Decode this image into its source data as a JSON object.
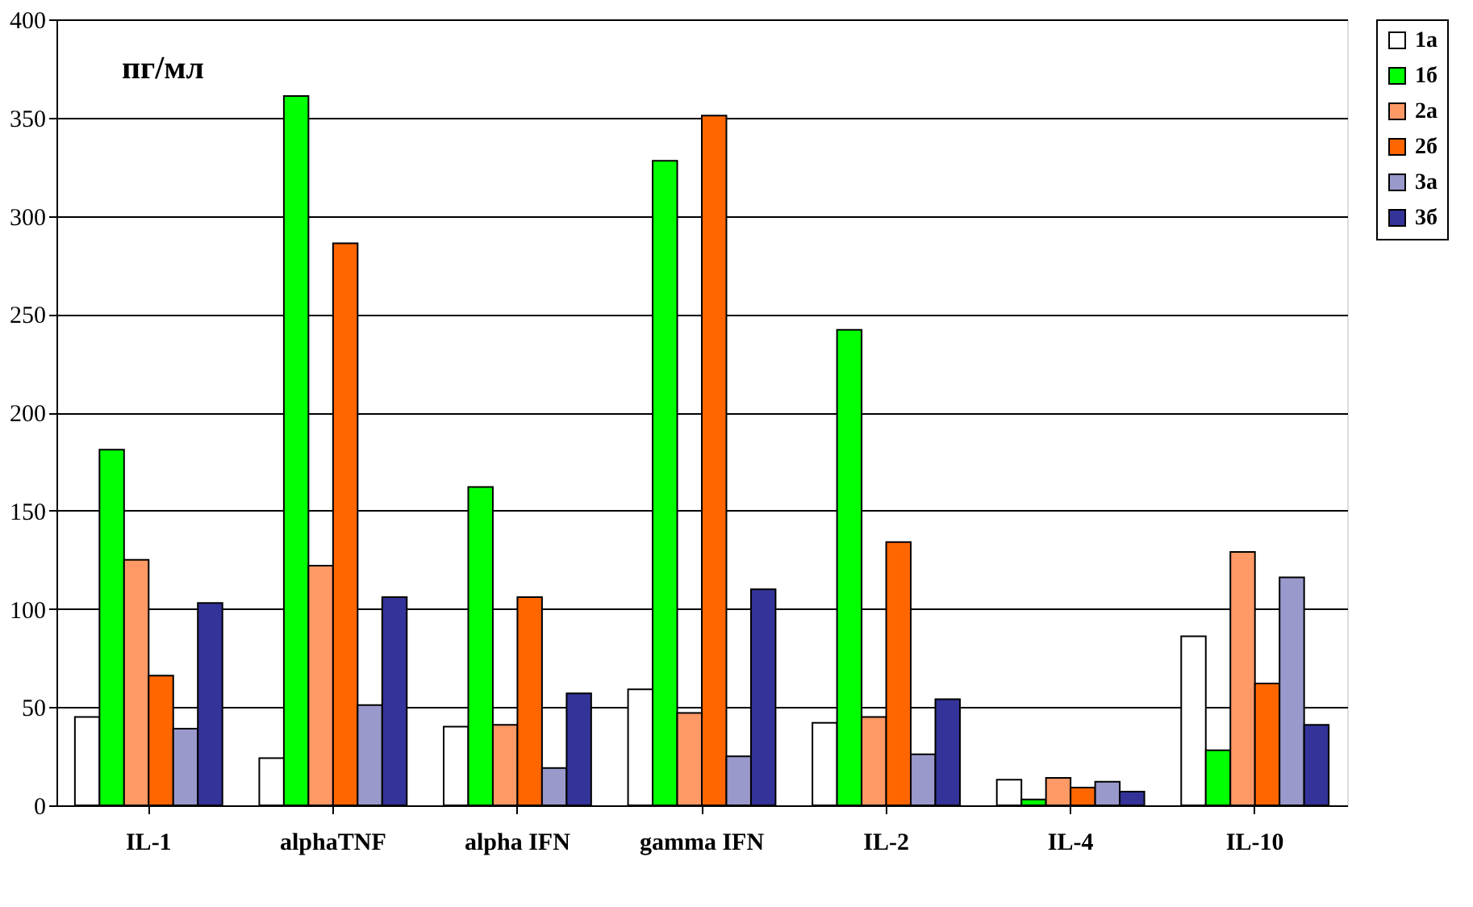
{
  "chart_data": {
    "type": "bar",
    "ylabel": "пг/мл",
    "categories": [
      "IL-1",
      "alphaTNF",
      "alpha IFN",
      "gamma IFN",
      "IL-2",
      "IL-4",
      "IL-10"
    ],
    "series": [
      {
        "name": "1а",
        "color": "#ffffff",
        "values": [
          45,
          24,
          40,
          59,
          42,
          13,
          86
        ]
      },
      {
        "name": "1б",
        "color": "#00ff00",
        "values": [
          181,
          361,
          162,
          328,
          242,
          3,
          28
        ]
      },
      {
        "name": "2а",
        "color": "#ff9966",
        "values": [
          125,
          122,
          41,
          47,
          45,
          14,
          129
        ]
      },
      {
        "name": "2б",
        "color": "#ff6600",
        "values": [
          66,
          286,
          106,
          351,
          134,
          9,
          62
        ]
      },
      {
        "name": "3а",
        "color": "#9999cc",
        "values": [
          39,
          51,
          19,
          25,
          26,
          12,
          116
        ]
      },
      {
        "name": "3б",
        "color": "#333399",
        "values": [
          103,
          106,
          57,
          110,
          54,
          7,
          41
        ]
      }
    ],
    "ylim": [
      0,
      400
    ],
    "yticks": [
      0,
      50,
      100,
      150,
      200,
      250,
      300,
      350,
      400
    ],
    "grid": "y",
    "legend": "right"
  }
}
